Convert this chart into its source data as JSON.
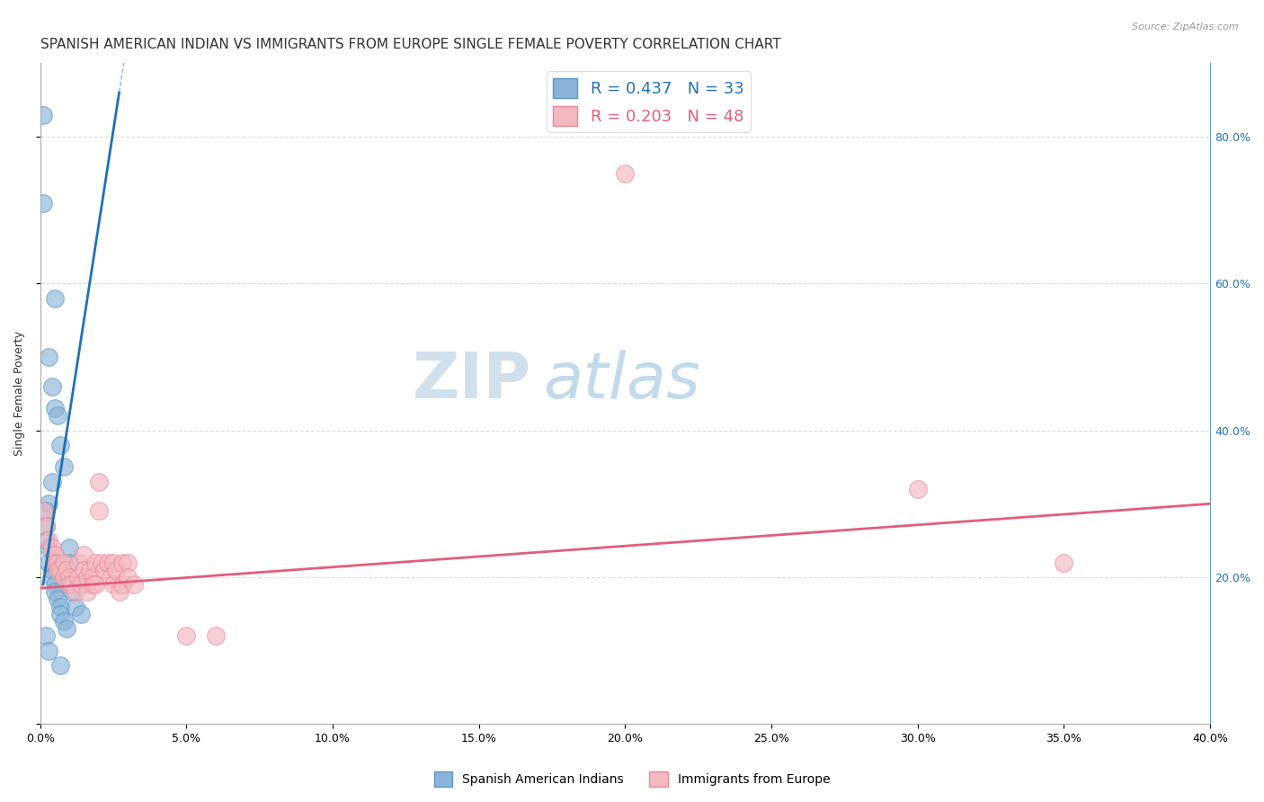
{
  "title": "SPANISH AMERICAN INDIAN VS IMMIGRANTS FROM EUROPE SINGLE FEMALE POVERTY CORRELATION CHART",
  "source": "Source: ZipAtlas.com",
  "ylabel": "Single Female Poverty",
  "xlim": [
    0.0,
    0.4
  ],
  "ylim": [
    0.0,
    0.9
  ],
  "xtick_vals": [
    0.0,
    0.05,
    0.1,
    0.15,
    0.2,
    0.25,
    0.3,
    0.35,
    0.4
  ],
  "xtick_labels": [
    "0.0%",
    "",
    "",
    "",
    "",
    "",
    "",
    "",
    "40.0%"
  ],
  "ytick_vals": [
    0.0,
    0.2,
    0.4,
    0.6,
    0.8
  ],
  "ytick_labels_right": [
    "20.0%",
    "40.0%",
    "60.0%",
    "80.0%"
  ],
  "blue_color": "#8ab4d8",
  "blue_edge_color": "#5b96c8",
  "pink_color": "#f4b8c1",
  "pink_edge_color": "#e88a95",
  "blue_line_color": "#2171b5",
  "pink_line_color": "#e05f7a",
  "watermark_zip_color": "#c5d8ea",
  "watermark_atlas_color": "#b0cce0",
  "background_color": "#ffffff",
  "grid_color": "#d8d8d8",
  "title_fontsize": 11,
  "axis_label_fontsize": 9,
  "tick_fontsize": 9,
  "legend_fontsize": 13,
  "blue_scatter": [
    [
      0.001,
      0.83
    ],
    [
      0.001,
      0.71
    ],
    [
      0.005,
      0.58
    ],
    [
      0.003,
      0.5
    ],
    [
      0.004,
      0.46
    ],
    [
      0.005,
      0.43
    ],
    [
      0.006,
      0.42
    ],
    [
      0.007,
      0.38
    ],
    [
      0.008,
      0.35
    ],
    [
      0.004,
      0.33
    ],
    [
      0.003,
      0.3
    ],
    [
      0.002,
      0.29
    ],
    [
      0.002,
      0.27
    ],
    [
      0.002,
      0.25
    ],
    [
      0.003,
      0.24
    ],
    [
      0.003,
      0.22
    ],
    [
      0.004,
      0.21
    ],
    [
      0.004,
      0.2
    ],
    [
      0.005,
      0.19
    ],
    [
      0.005,
      0.18
    ],
    [
      0.006,
      0.17
    ],
    [
      0.007,
      0.16
    ],
    [
      0.007,
      0.15
    ],
    [
      0.008,
      0.14
    ],
    [
      0.009,
      0.13
    ],
    [
      0.002,
      0.12
    ],
    [
      0.003,
      0.1
    ],
    [
      0.01,
      0.24
    ],
    [
      0.01,
      0.22
    ],
    [
      0.011,
      0.18
    ],
    [
      0.012,
      0.16
    ],
    [
      0.014,
      0.15
    ],
    [
      0.007,
      0.08
    ]
  ],
  "pink_scatter": [
    [
      0.001,
      0.29
    ],
    [
      0.002,
      0.27
    ],
    [
      0.003,
      0.25
    ],
    [
      0.004,
      0.24
    ],
    [
      0.005,
      0.23
    ],
    [
      0.005,
      0.22
    ],
    [
      0.006,
      0.22
    ],
    [
      0.006,
      0.21
    ],
    [
      0.007,
      0.21
    ],
    [
      0.008,
      0.2
    ],
    [
      0.008,
      0.22
    ],
    [
      0.009,
      0.21
    ],
    [
      0.01,
      0.2
    ],
    [
      0.01,
      0.19
    ],
    [
      0.011,
      0.19
    ],
    [
      0.012,
      0.18
    ],
    [
      0.013,
      0.22
    ],
    [
      0.013,
      0.2
    ],
    [
      0.014,
      0.19
    ],
    [
      0.015,
      0.23
    ],
    [
      0.015,
      0.21
    ],
    [
      0.016,
      0.2
    ],
    [
      0.016,
      0.18
    ],
    [
      0.017,
      0.21
    ],
    [
      0.018,
      0.2
    ],
    [
      0.018,
      0.19
    ],
    [
      0.019,
      0.22
    ],
    [
      0.019,
      0.19
    ],
    [
      0.02,
      0.33
    ],
    [
      0.02,
      0.29
    ],
    [
      0.021,
      0.22
    ],
    [
      0.022,
      0.21
    ],
    [
      0.023,
      0.22
    ],
    [
      0.024,
      0.2
    ],
    [
      0.025,
      0.22
    ],
    [
      0.025,
      0.19
    ],
    [
      0.026,
      0.21
    ],
    [
      0.027,
      0.18
    ],
    [
      0.028,
      0.22
    ],
    [
      0.028,
      0.19
    ],
    [
      0.03,
      0.22
    ],
    [
      0.03,
      0.2
    ],
    [
      0.032,
      0.19
    ],
    [
      0.05,
      0.12
    ],
    [
      0.06,
      0.12
    ],
    [
      0.2,
      0.75
    ],
    [
      0.3,
      0.32
    ],
    [
      0.35,
      0.22
    ]
  ],
  "blue_trend_x": [
    0.001,
    0.027
  ],
  "blue_trend_y": [
    0.19,
    0.86
  ],
  "pink_trend_x": [
    0.0,
    0.4
  ],
  "pink_trend_y": [
    0.185,
    0.3
  ]
}
